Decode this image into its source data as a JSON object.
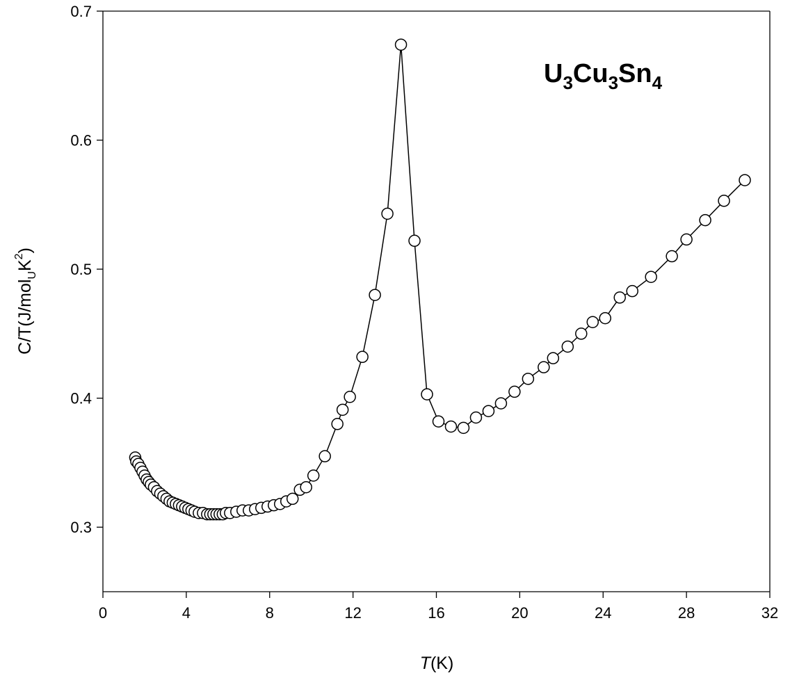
{
  "chart_data": {
    "type": "scatter",
    "title": "",
    "xlabel_italic": "T",
    "xlabel_rest": "(K)",
    "ylabel_parts": [
      "C/T(J/mol",
      "U",
      "K",
      "2",
      ")"
    ],
    "xlim": [
      0,
      32
    ],
    "ylim": [
      0.25,
      0.7
    ],
    "xticks": [
      0,
      4,
      8,
      12,
      16,
      20,
      24,
      28,
      32
    ],
    "xtick_labels": [
      "0",
      "4",
      "8",
      "12",
      "16",
      "20",
      "24",
      "28",
      "32"
    ],
    "yticks": [
      0.3,
      0.4,
      0.5,
      0.6,
      0.7
    ],
    "ytick_labels": [
      "0.3",
      "0.4",
      "0.5",
      "0.6",
      "0.7"
    ],
    "grid": false,
    "annotation_parts": [
      "U",
      "3",
      "Cu",
      "3",
      "Sn",
      "4"
    ],
    "series": [
      {
        "marker": "open-circle",
        "line": "solid",
        "x": [
          1.55,
          1.6,
          1.7,
          1.8,
          1.9,
          2.0,
          2.1,
          2.2,
          2.3,
          2.45,
          2.6,
          2.75,
          2.9,
          3.05,
          3.2,
          3.35,
          3.5,
          3.65,
          3.8,
          3.95,
          4.1,
          4.25,
          4.4,
          4.6,
          4.8,
          5.0,
          5.15,
          5.3,
          5.45,
          5.6,
          5.75,
          5.9,
          6.1,
          6.4,
          6.7,
          7.0,
          7.3,
          7.6,
          7.9,
          8.2,
          8.5,
          8.8,
          9.1,
          9.45,
          9.75,
          10.1,
          10.65,
          11.25,
          11.5,
          11.85,
          12.45,
          13.05,
          13.65,
          14.3,
          14.95,
          15.55,
          16.1,
          16.7,
          17.3,
          17.9,
          18.5,
          19.1,
          19.75,
          20.4,
          21.15,
          21.6,
          22.3,
          22.95,
          23.5,
          24.1,
          24.8,
          25.4,
          26.3,
          27.3,
          28.0,
          28.9,
          29.8,
          30.8
        ],
        "y": [
          0.354,
          0.351,
          0.349,
          0.346,
          0.343,
          0.34,
          0.337,
          0.335,
          0.333,
          0.331,
          0.328,
          0.326,
          0.324,
          0.322,
          0.32,
          0.319,
          0.318,
          0.317,
          0.316,
          0.315,
          0.314,
          0.313,
          0.312,
          0.311,
          0.311,
          0.31,
          0.31,
          0.31,
          0.31,
          0.31,
          0.31,
          0.311,
          0.311,
          0.312,
          0.313,
          0.313,
          0.314,
          0.315,
          0.316,
          0.317,
          0.318,
          0.32,
          0.322,
          0.329,
          0.331,
          0.34,
          0.355,
          0.38,
          0.391,
          0.401,
          0.432,
          0.48,
          0.543,
          0.674,
          0.522,
          0.403,
          0.382,
          0.378,
          0.377,
          0.385,
          0.39,
          0.396,
          0.405,
          0.415,
          0.424,
          0.431,
          0.44,
          0.45,
          0.459,
          0.462,
          0.478,
          0.483,
          0.494,
          0.51,
          0.523,
          0.538,
          0.553,
          0.569
        ]
      }
    ]
  }
}
